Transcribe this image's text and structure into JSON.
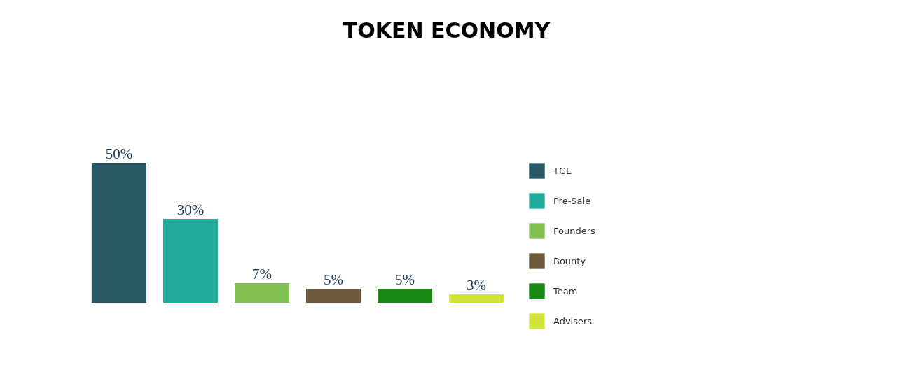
{
  "chart_data": {
    "type": "bar",
    "title": "TOKEN ECONOMY",
    "categories": [
      null,
      null,
      null,
      null,
      null,
      null
    ],
    "series": [
      {
        "name": "TGE",
        "color": "#2a5a66",
        "values": [
          50,
          null,
          null,
          null,
          null,
          null
        ],
        "value_labels": [
          "50%",
          null,
          null,
          null,
          null,
          null
        ]
      },
      {
        "name": "Pre-Sale",
        "color": "#22ab9a",
        "values": [
          null,
          30,
          null,
          null,
          null,
          null
        ],
        "value_labels": [
          null,
          "30%",
          null,
          null,
          null,
          null
        ]
      },
      {
        "name": "Founders",
        "color": "#82c255",
        "values": [
          null,
          null,
          7,
          null,
          null,
          null
        ],
        "value_labels": [
          null,
          null,
          "7%",
          null,
          null,
          null
        ]
      },
      {
        "name": "Bounty",
        "color": "#6e5a3a",
        "values": [
          null,
          null,
          null,
          5,
          null,
          null
        ],
        "value_labels": [
          null,
          null,
          null,
          "5%",
          null,
          null
        ]
      },
      {
        "name": "Team",
        "color": "#178a12",
        "values": [
          null,
          null,
          null,
          null,
          5,
          null
        ],
        "value_labels": [
          null,
          null,
          null,
          null,
          "5%",
          null
        ]
      },
      {
        "name": "Advisers",
        "color": "#d2e43a",
        "values": [
          null,
          null,
          null,
          null,
          null,
          3
        ],
        "value_labels": [
          null,
          null,
          null,
          null,
          null,
          "3%"
        ]
      }
    ],
    "stacked": true,
    "legend": "right",
    "tick_labels": false
  }
}
